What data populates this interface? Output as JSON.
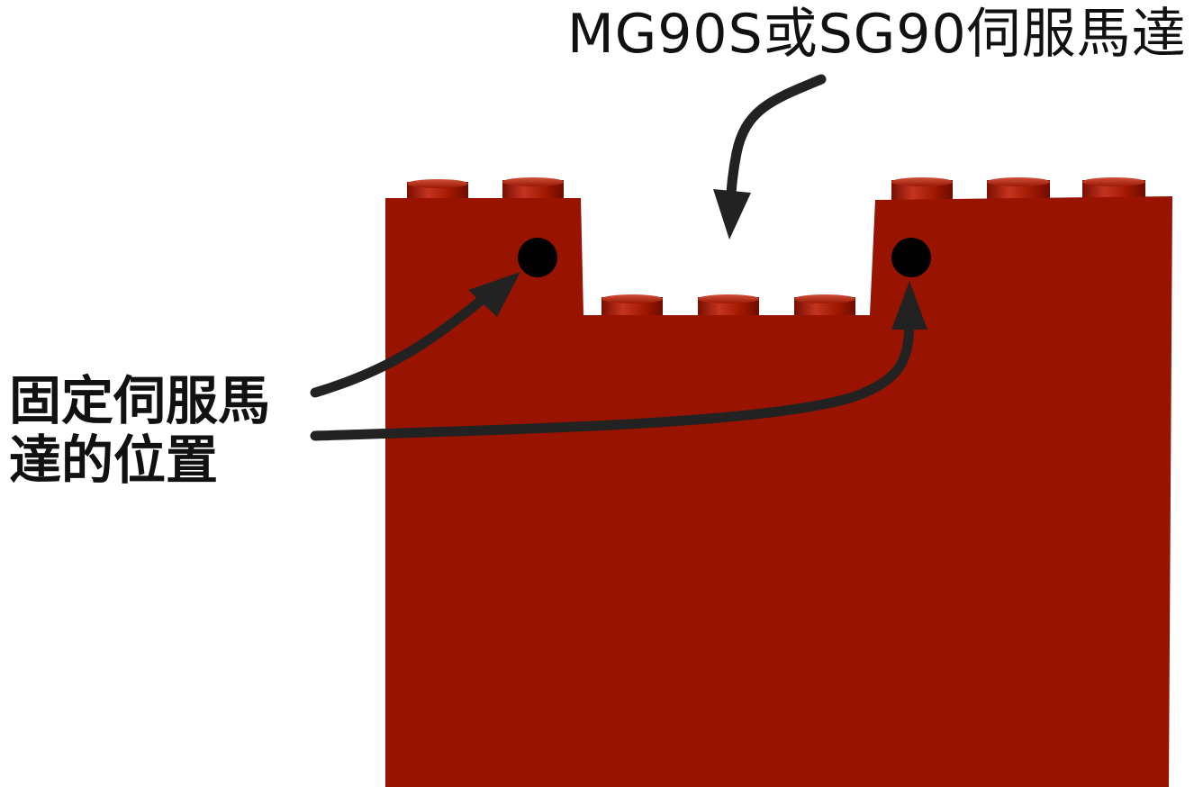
{
  "labels": {
    "servo_model": "MG90S或SG90伺服馬達",
    "mount_line1": "固定伺服馬",
    "mount_line2": "達的位置"
  },
  "colors": {
    "brick": "#981400",
    "stud_light": "#c43420",
    "stud_dark": "#6e0c00",
    "arrow": "#222222",
    "hole": "#000000",
    "background": "#ffffff"
  },
  "icons": {
    "arrow_top": "curved-arrow-down",
    "arrow_left_hole": "curved-arrow-up-right",
    "arrow_right_hole": "curved-arrow-up"
  }
}
